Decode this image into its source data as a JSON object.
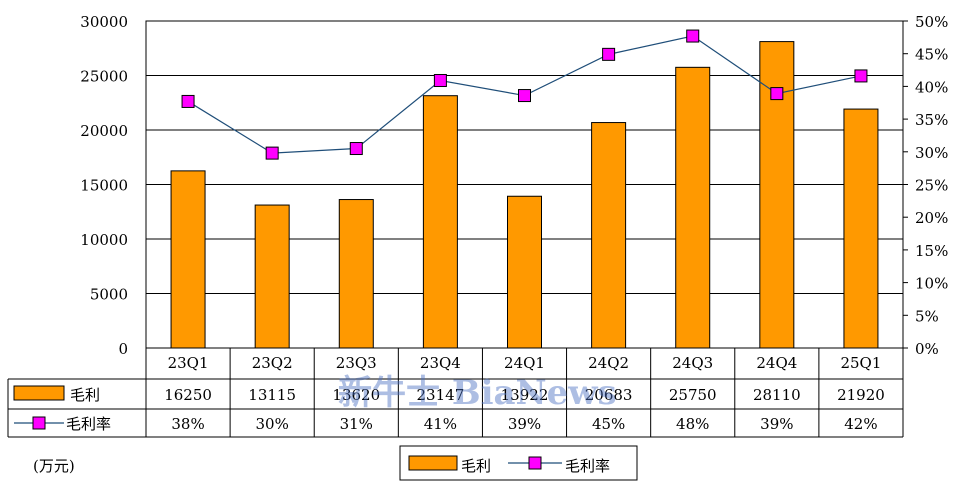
{
  "unit_label": "(万元)",
  "watermark": "新牛士 BiaNews",
  "chart_data": {
    "type": "bar",
    "categories": [
      "23Q1",
      "23Q2",
      "23Q3",
      "23Q4",
      "24Q1",
      "24Q2",
      "24Q3",
      "24Q4",
      "25Q1"
    ],
    "series": [
      {
        "name": "毛利",
        "type": "bar",
        "axis": "left",
        "color": "#FF9900",
        "values": [
          16250,
          13115,
          13620,
          23147,
          13922,
          20683,
          25750,
          28110,
          21920
        ],
        "labels": [
          "16250",
          "13115",
          "13620",
          "23147",
          "13922",
          "20683",
          "25750",
          "28110",
          "21920"
        ]
      },
      {
        "name": "毛利率",
        "type": "line",
        "axis": "right",
        "color": "#1F4E79",
        "marker_color": "#FF00FF",
        "values": [
          37.7,
          29.8,
          30.5,
          40.9,
          38.6,
          44.9,
          47.7,
          38.9,
          41.6
        ],
        "labels": [
          "38%",
          "30%",
          "31%",
          "41%",
          "39%",
          "45%",
          "48%",
          "39%",
          "42%"
        ]
      }
    ],
    "y_left": {
      "range": [
        0,
        30000
      ],
      "ticks": [
        "0",
        "5000",
        "10000",
        "15000",
        "20000",
        "25000",
        "30000"
      ]
    },
    "y_right": {
      "range": [
        0,
        50
      ],
      "ticks": [
        "0%",
        "5%",
        "10%",
        "15%",
        "20%",
        "25%",
        "30%",
        "35%",
        "40%",
        "45%",
        "50%"
      ]
    },
    "grid": true,
    "legend": "bottom-center",
    "data_table": true
  }
}
